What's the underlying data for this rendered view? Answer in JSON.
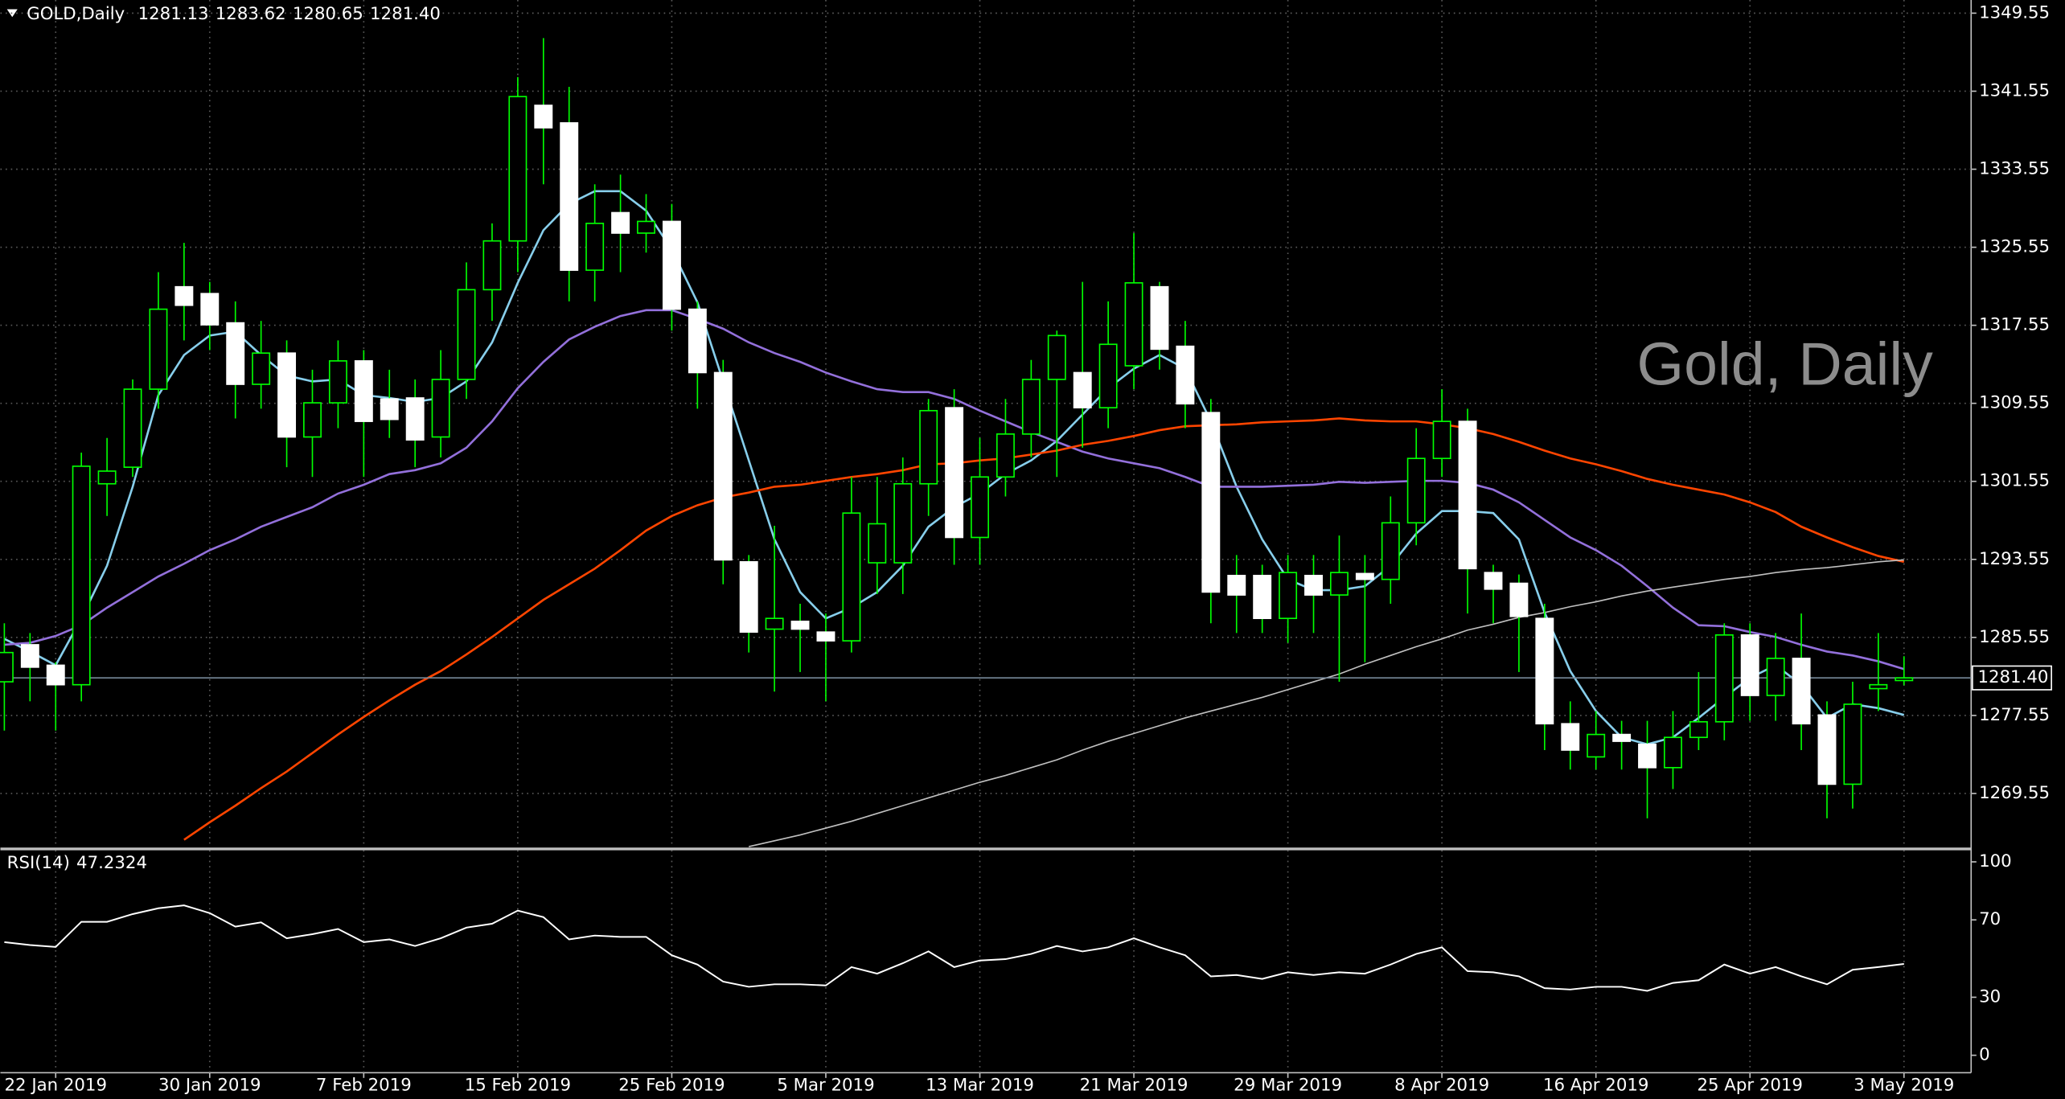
{
  "chart_data": [
    {
      "type": "candlestick",
      "title": "GOLD,Daily",
      "annotation": "Gold, Daily",
      "categories": [
        null,
        null,
        "22 Jan 2019",
        null,
        null,
        null,
        null,
        null,
        "30 Jan 2019",
        null,
        null,
        null,
        null,
        null,
        "7 Feb 2019",
        null,
        null,
        null,
        null,
        null,
        "15 Feb 2019",
        null,
        null,
        null,
        null,
        null,
        "25 Feb 2019",
        null,
        null,
        null,
        null,
        null,
        "5 Mar 2019",
        null,
        null,
        null,
        null,
        null,
        "13 Mar 2019",
        null,
        null,
        null,
        null,
        null,
        "21 Mar 2019",
        null,
        null,
        null,
        null,
        null,
        "29 Mar 2019",
        null,
        null,
        null,
        null,
        null,
        "8 Apr 2019",
        null,
        null,
        null,
        null,
        null,
        "16 Apr 2019",
        null,
        null,
        null,
        null,
        null,
        "25 Apr 2019",
        null,
        null,
        null,
        null,
        null,
        "3 May 2019"
      ],
      "open": [
        1281,
        1284.8,
        1282.7,
        1280.7,
        1301.3,
        1303,
        1311,
        1321.5,
        1320.8,
        1317.8,
        1311.5,
        1314.7,
        1306.1,
        1309.6,
        1313.9,
        1310,
        1310.1,
        1306.1,
        1312,
        1321.2,
        1326.2,
        1340.1,
        1338.3,
        1323.2,
        1329.1,
        1327,
        1328.2,
        1319.2,
        1312.7,
        1293.3,
        1286.4,
        1287.2,
        1286.1,
        1285.2,
        1293.2,
        1293.2,
        1301.3,
        1309.1,
        1295.8,
        1302,
        1306.4,
        1312,
        1312.7,
        1309.1,
        1313.4,
        1321.5,
        1315.4,
        1308.6,
        1291.9,
        1291.9,
        1287.5,
        1291.9,
        1289.9,
        1292.1,
        1291.5,
        1297.3,
        1303.9,
        1307.7,
        1292.2,
        1291.1,
        1287.5,
        1276.7,
        1273.3,
        1275.6,
        1274.6,
        1272.2,
        1275.3,
        1276.9,
        1285.8,
        1279.6,
        1283.4,
        1277.6,
        1270.5,
        1280.3,
        1281.13
      ],
      "high": [
        1287,
        1286,
        1283,
        1304.5,
        1306,
        1312,
        1323,
        1326,
        1322,
        1320,
        1318,
        1316,
        1313,
        1316,
        1315,
        1313,
        1312,
        1315,
        1324,
        1328,
        1343,
        1347,
        1342,
        1332,
        1333,
        1331,
        1330,
        1320,
        1314,
        1294,
        1297,
        1289,
        1288,
        1302,
        1302,
        1304,
        1310,
        1311,
        1306,
        1310,
        1314,
        1317,
        1322,
        1320,
        1327,
        1322,
        1318,
        1310,
        1294,
        1293,
        1294,
        1294,
        1296,
        1294,
        1300,
        1307,
        1311,
        1309,
        1293,
        1292,
        1289,
        1279,
        1278,
        1277,
        1277,
        1278,
        1282,
        1287,
        1287,
        1286,
        1288,
        1279,
        1281,
        1286,
        1283.62
      ],
      "low": [
        1276,
        1279,
        1276,
        1279,
        1298,
        1302,
        1309,
        1316,
        1315,
        1308,
        1309,
        1303,
        1302,
        1307,
        1302,
        1306,
        1303,
        1304,
        1310,
        1318,
        1323,
        1332,
        1320,
        1320,
        1323,
        1325,
        1317,
        1309,
        1291,
        1284,
        1280,
        1282,
        1279,
        1284,
        1290,
        1290,
        1298,
        1293,
        1293,
        1300,
        1304,
        1302,
        1305,
        1307,
        1311,
        1313,
        1307,
        1287,
        1286,
        1286,
        1285,
        1286,
        1281,
        1283,
        1289,
        1295,
        1302,
        1288,
        1287,
        1282,
        1274,
        1272,
        1272,
        1272,
        1267,
        1270,
        1274,
        1275,
        1277,
        1277,
        1274,
        1267,
        1268,
        1278,
        1280.65
      ],
      "close": [
        1284,
        1282.5,
        1280.7,
        1303.1,
        1302.6,
        1311,
        1319.2,
        1319.6,
        1317.6,
        1311.5,
        1314.7,
        1306.1,
        1309.6,
        1313.9,
        1307.7,
        1307.9,
        1305.8,
        1312,
        1321.2,
        1326.2,
        1341,
        1337.8,
        1323.2,
        1328,
        1327,
        1328.2,
        1319.2,
        1312.7,
        1293.5,
        1286.1,
        1287.5,
        1286.4,
        1285.2,
        1298.3,
        1297.2,
        1301.3,
        1308.8,
        1295.8,
        1302,
        1306.4,
        1312,
        1316.5,
        1309.1,
        1315.6,
        1321.9,
        1315.1,
        1309.5,
        1290.2,
        1289.9,
        1287.5,
        1292.2,
        1289.9,
        1292.2,
        1291.5,
        1297.3,
        1303.9,
        1307.7,
        1292.6,
        1290.5,
        1287.7,
        1276.7,
        1274,
        1275.6,
        1274.9,
        1272.2,
        1275.3,
        1276.9,
        1285.8,
        1279.6,
        1283.4,
        1276.7,
        1270.5,
        1278.7,
        1280.7,
        1281.4
      ],
      "colors": {
        "wick": "#00ff00",
        "up": "#000000",
        "down": "#ffffff",
        "up_outline": "#00ff00"
      },
      "series": [
        {
          "color": "#87ceeb",
          "values": [
            1285.4,
            1284.1,
            1282.7,
            1287.5,
            1292.9,
            1301.0,
            1310.4,
            1314.5,
            1316.5,
            1316.9,
            1314.5,
            1312.4,
            1311.8,
            1312.0,
            1310.4,
            1310.1,
            1309.7,
            1310.1,
            1311.8,
            1315.8,
            1321.9,
            1327.3,
            1330.0,
            1331.3,
            1331.3,
            1329.3,
            1325.3,
            1319.9,
            1311.8,
            1303.7,
            1295.6,
            1290.2,
            1287.5,
            1288.6,
            1290.2,
            1292.9,
            1296.9,
            1298.9,
            1300.3,
            1302.3,
            1303.7,
            1305.7,
            1308.4,
            1311.1,
            1313.1,
            1314.5,
            1313.1,
            1307.7,
            1301.0,
            1295.6,
            1291.5,
            1290.4,
            1290.4,
            1290.8,
            1292.9,
            1296.2,
            1298.5,
            1298.5,
            1298.3,
            1295.6,
            1288.1,
            1282.1,
            1278.0,
            1275.3,
            1274.6,
            1275.3,
            1277.3,
            1279.4,
            1281.4,
            1282.7,
            1280.7,
            1277.3,
            1278.7,
            1278.3,
            1277.6
          ]
        },
        {
          "color": "#9370db",
          "values": [
            1284.8,
            1285.0,
            1285.7,
            1286.8,
            1288.6,
            1290.2,
            1291.8,
            1293.1,
            1294.5,
            1295.6,
            1296.9,
            1297.9,
            1298.9,
            1300.3,
            1301.2,
            1302.3,
            1302.7,
            1303.4,
            1305.0,
            1307.7,
            1311.1,
            1313.8,
            1316.1,
            1317.4,
            1318.5,
            1319.1,
            1319.1,
            1318.2,
            1317.2,
            1315.8,
            1314.7,
            1313.8,
            1312.7,
            1311.8,
            1311.0,
            1310.7,
            1310.7,
            1310.0,
            1308.8,
            1307.7,
            1306.6,
            1305.6,
            1304.6,
            1303.9,
            1303.4,
            1302.9,
            1302.0,
            1301.0,
            1301.0,
            1301.0,
            1301.1,
            1301.2,
            1301.5,
            1301.4,
            1301.5,
            1301.6,
            1301.6,
            1301.4,
            1300.7,
            1299.4,
            1297.6,
            1295.8,
            1294.5,
            1292.9,
            1290.8,
            1288.6,
            1286.8,
            1286.7,
            1286.1,
            1285.6,
            1284.8,
            1284.1,
            1283.7,
            1283.1,
            1282.3
          ]
        },
        {
          "color": "#ff4500",
          "values": [
            null,
            null,
            null,
            null,
            null,
            null,
            null,
            1264.8,
            1266.6,
            1268.3,
            1270.1,
            1271.8,
            1273.7,
            1275.6,
            1277.4,
            1279.1,
            1280.7,
            1282.1,
            1283.8,
            1285.6,
            1287.5,
            1289.4,
            1291.0,
            1292.6,
            1294.5,
            1296.5,
            1298.0,
            1299.1,
            1299.9,
            1300.4,
            1301.0,
            1301.2,
            1301.6,
            1302.0,
            1302.3,
            1302.7,
            1303.3,
            1303.4,
            1303.7,
            1303.9,
            1304.3,
            1304.7,
            1305.3,
            1305.7,
            1306.2,
            1306.8,
            1307.2,
            1307.3,
            1307.4,
            1307.6,
            1307.7,
            1307.8,
            1308.0,
            1307.8,
            1307.7,
            1307.7,
            1307.4,
            1307.0,
            1306.4,
            1305.6,
            1304.7,
            1303.9,
            1303.3,
            1302.6,
            1301.8,
            1301.2,
            1300.7,
            1300.2,
            1299.4,
            1298.4,
            1296.9,
            1295.8,
            1294.8,
            1293.9,
            1293.3
          ]
        },
        {
          "color": "#c0c0c0",
          "values": [
            null,
            null,
            null,
            null,
            null,
            null,
            null,
            null,
            null,
            null,
            null,
            null,
            null,
            null,
            null,
            null,
            null,
            null,
            null,
            null,
            null,
            null,
            null,
            null,
            null,
            null,
            null,
            null,
            null,
            1264.1,
            1264.7,
            1265.3,
            1266.0,
            1266.7,
            1267.5,
            1268.3,
            1269.1,
            1269.9,
            1270.7,
            1271.4,
            1272.2,
            1273.0,
            1274.0,
            1274.9,
            1275.7,
            1276.5,
            1277.3,
            1278.0,
            1278.7,
            1279.4,
            1280.2,
            1281.0,
            1281.8,
            1282.8,
            1283.7,
            1284.6,
            1285.4,
            1286.3,
            1286.9,
            1287.6,
            1288.1,
            1288.7,
            1289.2,
            1289.8,
            1290.3,
            1290.7,
            1291.1,
            1291.5,
            1291.8,
            1292.2,
            1292.5,
            1292.7,
            1293.0,
            1293.3,
            1293.5
          ]
        }
      ],
      "current_price": {
        "value": 1281.4,
        "label": "1281.40"
      },
      "ylim": [
        1264.0,
        1350.9
      ],
      "yticks": [
        1349.55,
        1341.55,
        1333.55,
        1325.55,
        1317.55,
        1309.55,
        1301.55,
        1293.55,
        1285.55,
        1277.55,
        1269.55
      ],
      "grid": true
    },
    {
      "type": "line",
      "title": "RSI(14)",
      "series": [
        {
          "color": "#ffffff",
          "values": [
            58.5,
            57,
            56,
            69,
            69,
            73,
            76,
            77.5,
            73.5,
            66.5,
            68.7,
            60.5,
            62.6,
            65.3,
            58.5,
            59.9,
            56.5,
            60.5,
            66,
            68,
            74.8,
            71.4,
            59.9,
            61.9,
            61.2,
            61.2,
            51.7,
            46.9,
            38.1,
            35.4,
            36.7,
            36.7,
            36.1,
            45.6,
            42.2,
            47.6,
            53.7,
            45.6,
            49,
            49.7,
            52.4,
            56.5,
            53.7,
            55.8,
            60.5,
            55.8,
            51.7,
            40.8,
            41.5,
            39.5,
            42.9,
            41.5,
            42.9,
            42.2,
            46.9,
            52.4,
            55.8,
            43.5,
            42.9,
            40.8,
            34.7,
            34,
            35.4,
            35.4,
            33.3,
            37.4,
            38.8,
            46.9,
            42.2,
            45.6,
            40.8,
            36.7,
            44.2,
            45.6,
            47.2324
          ]
        }
      ],
      "ylim": [
        -9,
        106
      ],
      "yticks": [
        0,
        30,
        70,
        100
      ]
    }
  ]
}
